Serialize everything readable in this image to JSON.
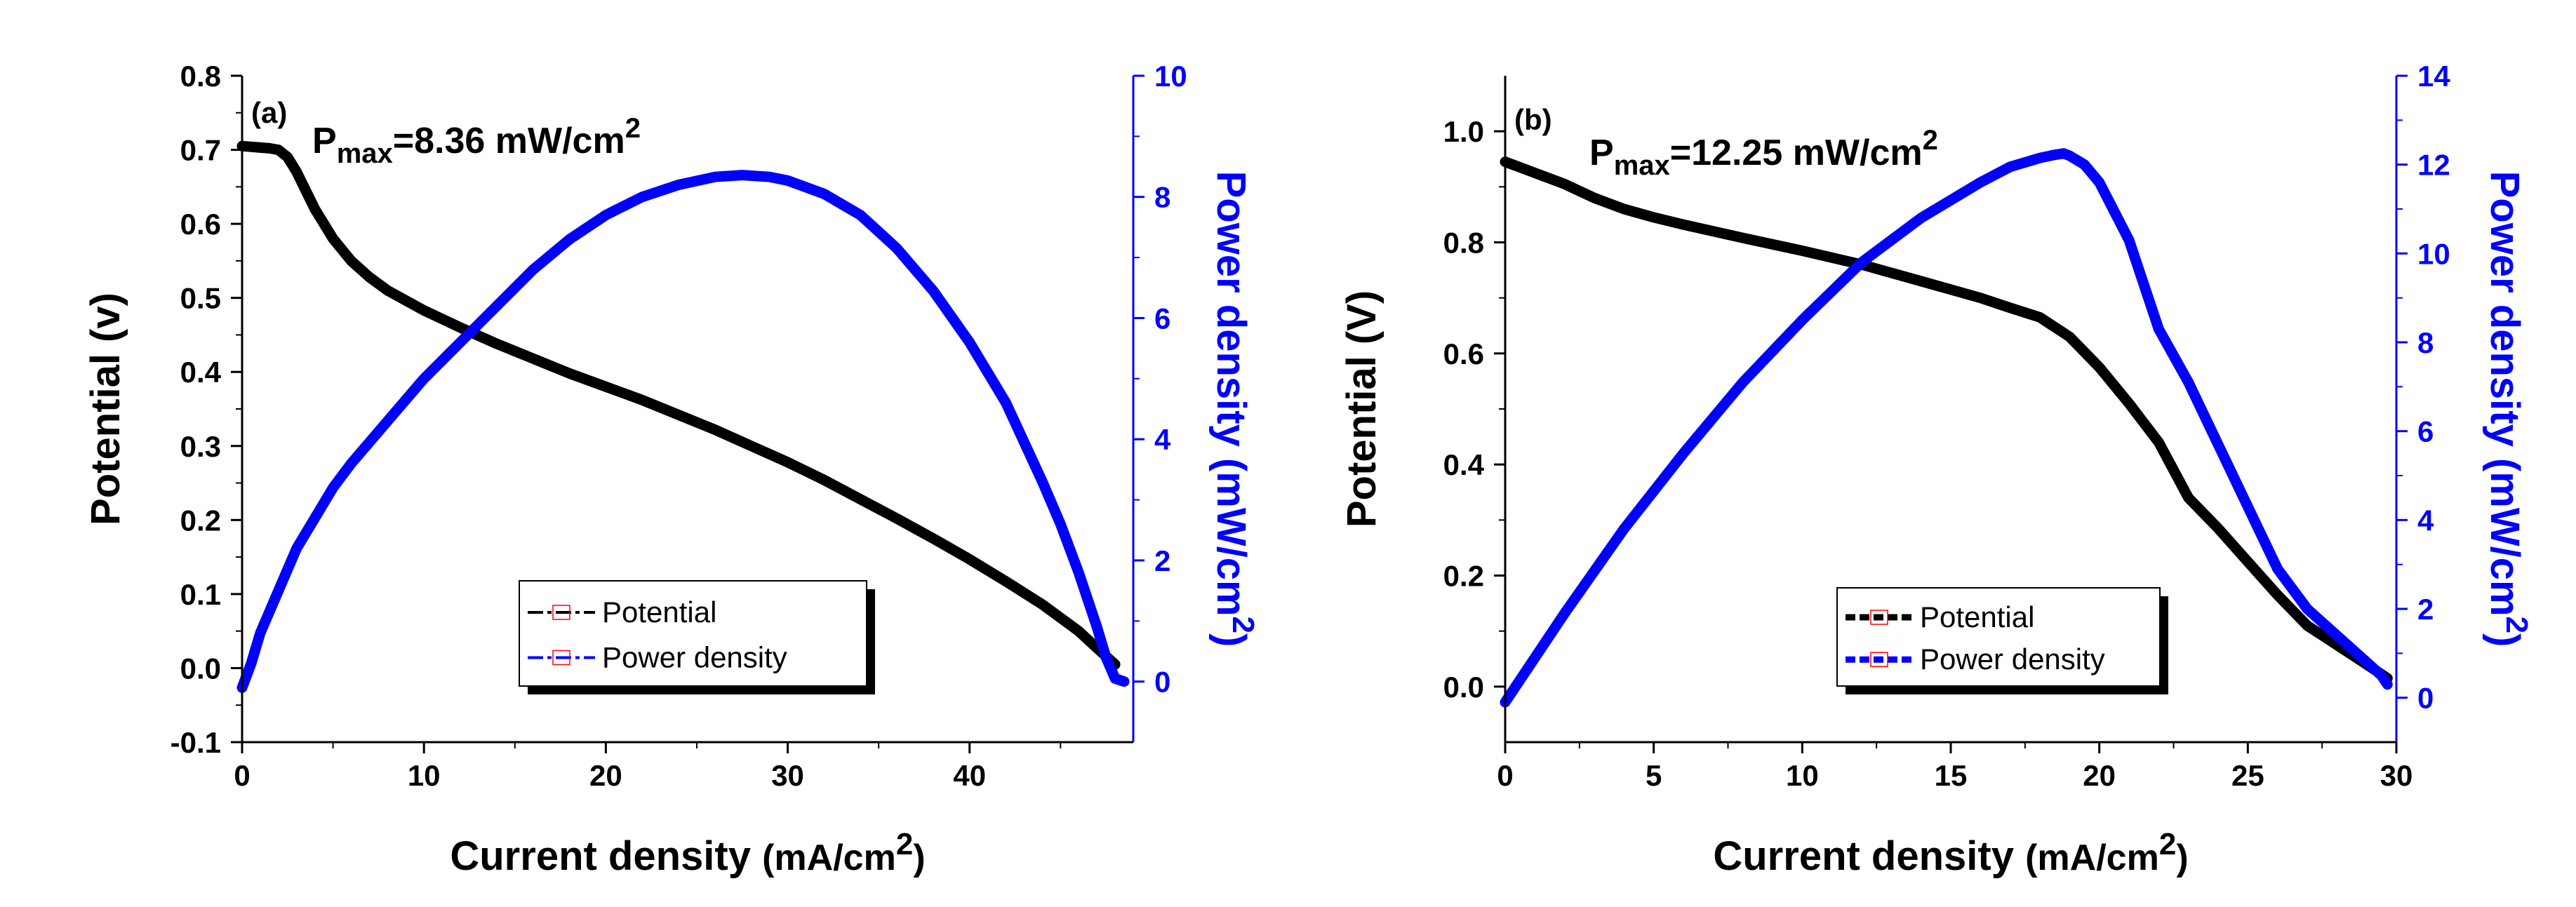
{
  "colors": {
    "potential": "#000000",
    "power": "#0000ff",
    "axis": "#000000"
  },
  "chart_data": [
    {
      "type": "line",
      "panel_label": "(a)",
      "annotation": {
        "prefix": "P",
        "subscript": "max",
        "value": "=8.36 mW/cm",
        "superscript": "2"
      },
      "xlabel": {
        "main": "Current density ",
        "unit": "(mA/cm",
        "sup": "2",
        "close": ")"
      },
      "ylabel_left": "Potential (v)",
      "ylabel_right": {
        "main": "Power density (mW/cm",
        "sup": "2",
        "close": ")"
      },
      "xlim": [
        0,
        49
      ],
      "ylim_left": [
        -0.1,
        0.8
      ],
      "ylim_right": [
        -1,
        10
      ],
      "x_ticks": [
        0,
        10,
        20,
        30,
        40
      ],
      "x_tick_labels": [
        "0",
        "10",
        "20",
        "30",
        "40"
      ],
      "y_left_ticks": [
        -0.1,
        0.0,
        0.1,
        0.2,
        0.3,
        0.4,
        0.5,
        0.6,
        0.7,
        0.8
      ],
      "y_left_tick_labels": [
        "-0.1",
        "0.0",
        "0.1",
        "0.2",
        "0.3",
        "0.4",
        "0.5",
        "0.6",
        "0.7",
        "0.8"
      ],
      "y_right_ticks": [
        0,
        2,
        4,
        6,
        8,
        10
      ],
      "y_right_tick_labels": [
        "0",
        "2",
        "4",
        "6",
        "8",
        "10"
      ],
      "legend": {
        "entries": [
          "Potential",
          "Power density"
        ],
        "position": "bottom-center"
      },
      "series": [
        {
          "name": "Potential",
          "axis": "left",
          "x": [
            0,
            0.5,
            1,
            1.5,
            2,
            2.5,
            3,
            3.5,
            4,
            5,
            6,
            7,
            8,
            10,
            12,
            14,
            16,
            18,
            20,
            22,
            24,
            26,
            28,
            30,
            32,
            34,
            36,
            38,
            40,
            42,
            44,
            46,
            47,
            48
          ],
          "values": [
            0.705,
            0.704,
            0.703,
            0.702,
            0.7,
            0.69,
            0.67,
            0.645,
            0.62,
            0.58,
            0.55,
            0.528,
            0.51,
            0.483,
            0.46,
            0.438,
            0.418,
            0.398,
            0.38,
            0.362,
            0.342,
            0.322,
            0.3,
            0.278,
            0.254,
            0.228,
            0.202,
            0.175,
            0.147,
            0.117,
            0.086,
            0.05,
            0.027,
            0.005
          ]
        },
        {
          "name": "Power density",
          "axis": "right",
          "x": [
            0,
            0.5,
            1,
            2,
            3,
            4,
            5,
            6,
            8,
            10,
            12,
            14,
            16,
            18,
            20,
            22,
            24,
            26,
            27.5,
            29,
            30,
            32,
            34,
            36,
            38,
            40,
            42,
            44,
            45,
            46,
            47,
            47.5,
            48,
            48.5
          ],
          "values": [
            -0.1,
            0.3,
            0.8,
            1.5,
            2.2,
            2.7,
            3.2,
            3.6,
            4.3,
            5.0,
            5.6,
            6.2,
            6.8,
            7.3,
            7.7,
            8.0,
            8.2,
            8.33,
            8.36,
            8.33,
            8.27,
            8.05,
            7.7,
            7.15,
            6.45,
            5.6,
            4.6,
            3.3,
            2.6,
            1.8,
            0.9,
            0.4,
            0.05,
            0.0
          ]
        }
      ]
    },
    {
      "type": "line",
      "panel_label": "(b)",
      "annotation": {
        "prefix": "P",
        "subscript": "max",
        "value": "=12.25 mW/cm",
        "superscript": "2"
      },
      "xlabel": {
        "main": "Current density ",
        "unit": "(mA/cm",
        "sup": "2",
        "close": ")"
      },
      "ylabel_left": "Potential (V)",
      "ylabel_right": {
        "main": "Power density (mW/cm",
        "sup": "2",
        "close": ")"
      },
      "xlim": [
        0,
        30
      ],
      "ylim_left": [
        -0.1,
        1.1
      ],
      "ylim_right": [
        -1,
        14
      ],
      "x_ticks": [
        0,
        5,
        10,
        15,
        20,
        25,
        30
      ],
      "x_tick_labels": [
        "0",
        "5",
        "10",
        "15",
        "20",
        "25",
        "30"
      ],
      "y_left_ticks": [
        0.0,
        0.2,
        0.4,
        0.6,
        0.8,
        1.0
      ],
      "y_left_tick_labels": [
        "0.0",
        "0.2",
        "0.4",
        "0.6",
        "0.8",
        "1.0"
      ],
      "y_right_ticks": [
        0,
        2,
        4,
        6,
        8,
        10,
        12,
        14
      ],
      "y_right_tick_labels": [
        "0",
        "2",
        "4",
        "6",
        "8",
        "10",
        "12",
        "14"
      ],
      "legend": {
        "entries": [
          "Potential",
          "Power density"
        ],
        "position": "bottom-center"
      },
      "series": [
        {
          "name": "Potential",
          "axis": "left",
          "x": [
            0,
            1,
            2,
            3,
            4,
            5,
            6,
            8,
            10,
            12,
            14,
            16,
            17,
            18,
            19,
            20,
            21,
            22,
            23,
            24,
            25,
            26,
            27,
            28,
            29,
            29.7
          ],
          "values": [
            0.945,
            0.925,
            0.905,
            0.88,
            0.86,
            0.845,
            0.832,
            0.808,
            0.785,
            0.76,
            0.73,
            0.7,
            0.682,
            0.665,
            0.63,
            0.575,
            0.51,
            0.44,
            0.34,
            0.285,
            0.225,
            0.165,
            0.11,
            0.075,
            0.04,
            0.015
          ]
        },
        {
          "name": "Power density",
          "axis": "right",
          "x": [
            0,
            1,
            2,
            4,
            6,
            8,
            10,
            12,
            14,
            16,
            17,
            18,
            18.5,
            18.8,
            19,
            19.5,
            20,
            21,
            22,
            23,
            24,
            25,
            26,
            27,
            28,
            29,
            29.5,
            29.7
          ],
          "values": [
            -0.1,
            0.9,
            1.9,
            3.8,
            5.5,
            7.1,
            8.5,
            9.8,
            10.8,
            11.6,
            11.95,
            12.15,
            12.22,
            12.25,
            12.2,
            12.0,
            11.6,
            10.3,
            8.3,
            7.1,
            5.7,
            4.3,
            2.9,
            2.0,
            1.4,
            0.8,
            0.5,
            0.3
          ]
        }
      ]
    }
  ]
}
